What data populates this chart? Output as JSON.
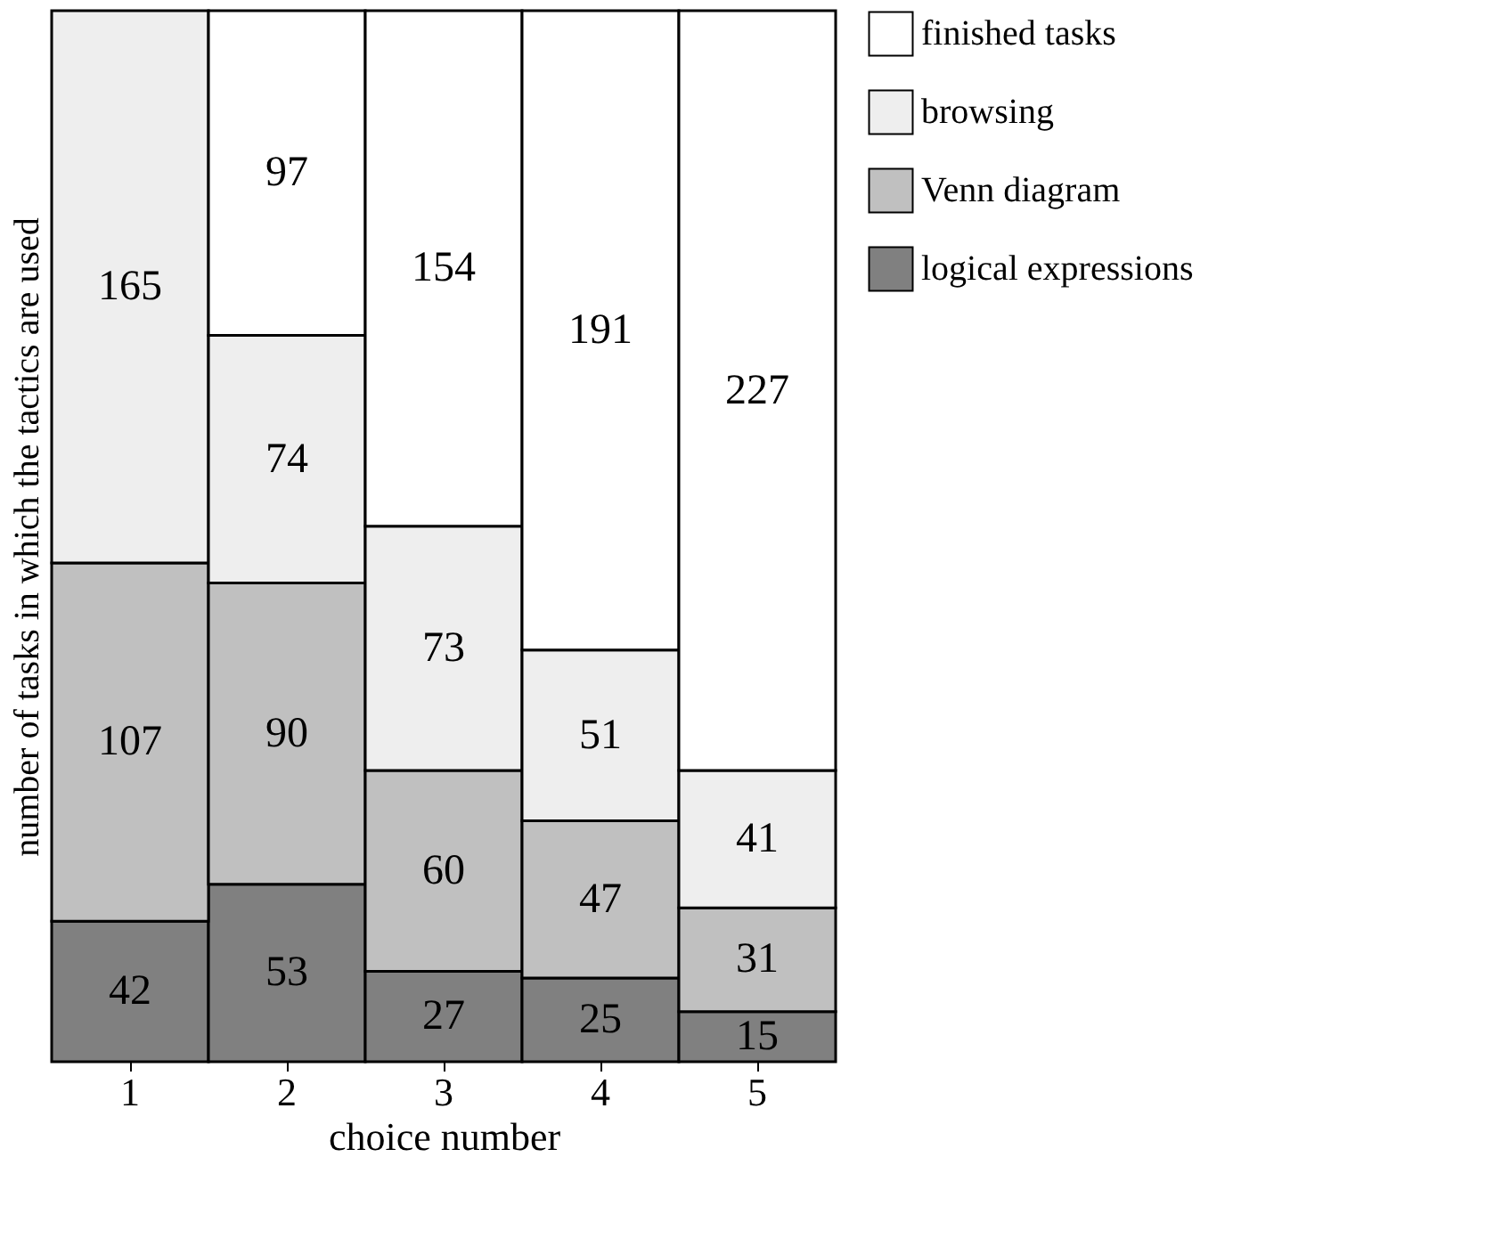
{
  "chart_data": {
    "type": "bar",
    "stacked": true,
    "data_labels": true,
    "legend": "right",
    "xlabel": "choice number",
    "ylabel": "number of tasks in which the tactics are used",
    "categories": [
      "1",
      "2",
      "3",
      "4",
      "5"
    ],
    "series": [
      {
        "name": "logical expressions",
        "color": "#808080",
        "values": [
          42,
          53,
          27,
          25,
          15
        ]
      },
      {
        "name": "Venn diagram",
        "color": "#c0c0c0",
        "values": [
          107,
          90,
          60,
          47,
          31
        ]
      },
      {
        "name": "browsing",
        "color": "#eeeeee",
        "values": [
          165,
          74,
          73,
          51,
          41
        ]
      },
      {
        "name": "finished tasks",
        "color": "#ffffff",
        "values": [
          null,
          97,
          154,
          191,
          227
        ]
      }
    ]
  }
}
